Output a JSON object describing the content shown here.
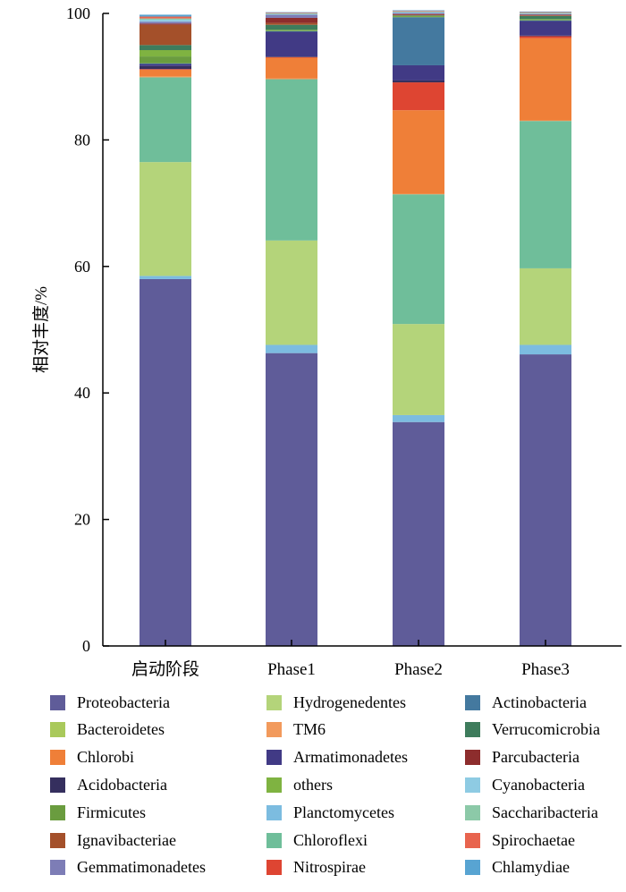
{
  "colors": {
    "Proteobacteria": "#5f5c99",
    "Bacteroidetes": "#a9c95b",
    "Chlorobi": "#ef7f38",
    "Acidobacteria": "#352f5e",
    "Firmicutes": "#6a9c3f",
    "Ignavibacteriae": "#a4502a",
    "Gemmatimonadetes": "#7d7db6",
    "Hydrogenedentes": "#b4d47a",
    "TM6": "#f29a5c",
    "Armatimonadetes": "#413a85",
    "others": "#7fb341",
    "Planctomycetes": "#7cbce0",
    "Chloroflexi": "#6fbe9a",
    "Nitrospirae": "#de4532",
    "Actinobacteria": "#44799f",
    "Verrucomicrobia": "#3e7c5c",
    "Parcubacteria": "#8d2d2d",
    "Cyanobacteria": "#8ecbe3",
    "Saccharibacteria": "#8cc9a8",
    "Spirochaetae": "#e8644e",
    "Chlamydiae": "#58a4d2"
  },
  "chart_data": {
    "type": "bar",
    "stacked": true,
    "ylabel": "相对丰度/%",
    "ylim": [
      0,
      100
    ],
    "yticks": [
      0,
      20,
      40,
      60,
      80,
      100
    ],
    "categories": [
      "启动阶段",
      "Phase1",
      "Phase2",
      "Phase3"
    ],
    "legend_position": "bottom",
    "legend_order": [
      "Proteobacteria",
      "Bacteroidetes",
      "Chlorobi",
      "Acidobacteria",
      "Firmicutes",
      "Ignavibacteriae",
      "Gemmatimonadetes",
      "Hydrogenedentes",
      "TM6",
      "Armatimonadetes",
      "others",
      "Planctomycetes",
      "Chloroflexi",
      "Nitrospirae",
      "Actinobacteria",
      "Verrucomicrobia",
      "Parcubacteria",
      "Cyanobacteria",
      "Saccharibacteria",
      "Spirochaetae",
      "Chlamydiae"
    ],
    "stack_order": [
      "Proteobacteria",
      "Planctomycetes",
      "Hydrogenedentes",
      "Chloroflexi",
      "TM6",
      "Chlorobi",
      "Nitrospirae",
      "Acidobacteria",
      "Armatimonadetes",
      "Actinobacteria",
      "Firmicutes",
      "others",
      "Verrucomicrobia",
      "Ignavibacteriae",
      "Parcubacteria",
      "Gemmatimonadetes",
      "Cyanobacteria",
      "Saccharibacteria",
      "Spirochaetae",
      "Chlamydiae",
      "Bacteroidetes"
    ],
    "series": [
      {
        "name": "Proteobacteria",
        "values": [
          58.0,
          46.3,
          35.4,
          46.1
        ]
      },
      {
        "name": "Planctomycetes",
        "values": [
          0.5,
          1.3,
          1.1,
          1.5
        ]
      },
      {
        "name": "Hydrogenedentes",
        "values": [
          18.0,
          16.5,
          14.4,
          12.1
        ]
      },
      {
        "name": "Chloroflexi",
        "values": [
          13.4,
          25.5,
          20.5,
          23.3
        ]
      },
      {
        "name": "TM6",
        "values": [
          0.2,
          0.1,
          0.1,
          0.1
        ]
      },
      {
        "name": "Chlorobi",
        "values": [
          1.0,
          3.3,
          13.2,
          13.0
        ]
      },
      {
        "name": "Nitrospirae",
        "values": [
          0.1,
          0.1,
          4.4,
          0.3
        ]
      },
      {
        "name": "Acidobacteria",
        "values": [
          0.5,
          0.1,
          0.3,
          0.1
        ]
      },
      {
        "name": "Armatimonadetes",
        "values": [
          0.3,
          3.9,
          2.4,
          2.3
        ]
      },
      {
        "name": "Actinobacteria",
        "values": [
          0.1,
          0.1,
          7.6,
          0.1
        ]
      },
      {
        "name": "Firmicutes",
        "values": [
          1.1,
          0.1,
          0.1,
          0.1
        ]
      },
      {
        "name": "others",
        "values": [
          1.0,
          0.1,
          0.1,
          0.1
        ]
      },
      {
        "name": "Verrucomicrobia",
        "values": [
          0.8,
          0.8,
          0.1,
          0.5
        ]
      },
      {
        "name": "Ignavibacteriae",
        "values": [
          3.2,
          0.3,
          0.1,
          0.1
        ]
      },
      {
        "name": "Parcubacteria",
        "values": [
          0.2,
          0.8,
          0.1,
          0.1
        ]
      },
      {
        "name": "Gemmatimonadetes",
        "values": [
          0.3,
          0.5,
          0.2,
          0.1
        ]
      },
      {
        "name": "Cyanobacteria",
        "values": [
          0.3,
          0.1,
          0.1,
          0.1
        ]
      },
      {
        "name": "Saccharibacteria",
        "values": [
          0.2,
          0.1,
          0.1,
          0.1
        ]
      },
      {
        "name": "Spirochaetae",
        "values": [
          0.3,
          0.1,
          0.1,
          0.1
        ]
      },
      {
        "name": "Chlamydiae",
        "values": [
          0.3,
          0.1,
          0.1,
          0.1
        ]
      },
      {
        "name": "Bacteroidetes",
        "values": [
          0.0,
          0.0,
          0.0,
          0.0
        ]
      }
    ]
  }
}
